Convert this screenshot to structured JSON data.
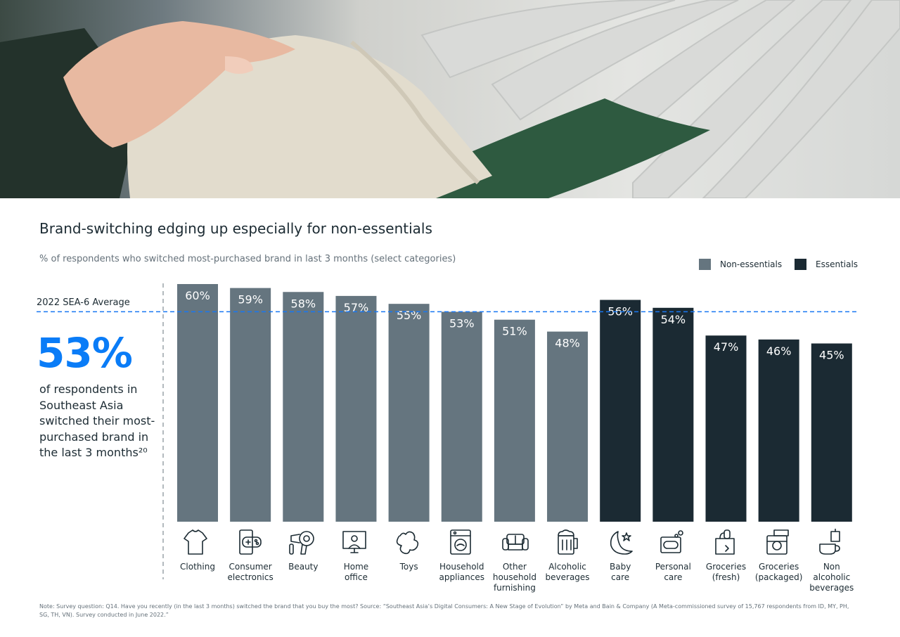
{
  "hero": {
    "image": "hand-holding-white-shirt-on-clothes-rack-photo"
  },
  "title": "Brand-switching edging up especially for non-essentials",
  "subtitle": "% of respondents who switched most-purchased brand in last 3 months (select categories)",
  "legend": {
    "non_essentials": "Non-essentials",
    "essentials": "Essentials"
  },
  "average": {
    "label": "2022 SEA-6 Average",
    "value": 53
  },
  "stat": {
    "value": "53%",
    "description": "of respondents in Southeast Asia switched their most-purchased brand in the last 3 months²⁰"
  },
  "colors": {
    "non_essentials": "#65757f",
    "essentials": "#1b2a33",
    "accent": "#0a7cf7",
    "average_line": "#1877f2"
  },
  "chart_data": {
    "type": "bar",
    "title": "Brand-switching edging up especially for non-essentials",
    "subtitle": "% of respondents who switched most-purchased brand in last 3 months (select categories)",
    "ylim": [
      0,
      60
    ],
    "reference_line": {
      "label": "2022 SEA-6 Average",
      "value": 53
    },
    "legend_position": "top-right",
    "categories": [
      "Clothing",
      "Consumer electronics",
      "Beauty",
      "Home office",
      "Toys",
      "Household appliances",
      "Other household furnishing",
      "Alcoholic beverages",
      "Baby care",
      "Personal care",
      "Groceries (fresh)",
      "Groceries (packaged)",
      "Non alcoholic beverages"
    ],
    "bars": [
      {
        "label": [
          "Clothing"
        ],
        "value": 60,
        "value_label": "60%",
        "group": "Non-essentials",
        "icon": "tshirt-icon"
      },
      {
        "label": [
          "Consumer",
          "electronics"
        ],
        "value": 59,
        "value_label": "59%",
        "group": "Non-essentials",
        "icon": "game-controller-phone-icon"
      },
      {
        "label": [
          "Beauty"
        ],
        "value": 58,
        "value_label": "58%",
        "group": "Non-essentials",
        "icon": "hair-dryer-icon"
      },
      {
        "label": [
          "Home",
          "office"
        ],
        "value": 57,
        "value_label": "57%",
        "group": "Non-essentials",
        "icon": "monitor-person-icon"
      },
      {
        "label": [
          "Toys"
        ],
        "value": 55,
        "value_label": "55%",
        "group": "Non-essentials",
        "icon": "puzzle-piece-icon"
      },
      {
        "label": [
          "Household",
          "appliances"
        ],
        "value": 53,
        "value_label": "53%",
        "group": "Non-essentials",
        "icon": "washing-machine-icon"
      },
      {
        "label": [
          "Other",
          "household",
          "furnishing"
        ],
        "value": 51,
        "value_label": "51%",
        "group": "Non-essentials",
        "icon": "sofa-icon"
      },
      {
        "label": [
          "Alcoholic",
          "beverages"
        ],
        "value": 48,
        "value_label": "48%",
        "group": "Non-essentials",
        "icon": "beer-mug-icon"
      },
      {
        "label": [
          "Baby",
          "care"
        ],
        "value": 56,
        "value_label": "56%",
        "group": "Essentials",
        "icon": "moon-star-icon"
      },
      {
        "label": [
          "Personal",
          "care"
        ],
        "value": 54,
        "value_label": "54%",
        "group": "Essentials",
        "icon": "soap-bubbles-icon"
      },
      {
        "label": [
          "Groceries",
          "(fresh)"
        ],
        "value": 47,
        "value_label": "47%",
        "group": "Essentials",
        "icon": "grocery-bag-icon"
      },
      {
        "label": [
          "Groceries",
          "(packaged)"
        ],
        "value": 46,
        "value_label": "46%",
        "group": "Essentials",
        "icon": "packaged-jar-icon"
      },
      {
        "label": [
          "Non",
          "alcoholic",
          "beverages"
        ],
        "value": 45,
        "value_label": "45%",
        "group": "Essentials",
        "icon": "cup-drink-icon"
      }
    ]
  },
  "footnote": "Note: Survey question: Q14. Have you recently (in the last 3 months) switched the brand that you buy the most? Source: “Southeast Asia’s Digital Consumers: A New Stage of Evolution” by Meta and Bain & Company (A Meta-commissioned survey of 15,767 respondents from ID, MY, PH, SG, TH, VN). Survey conducted in June 2022.”"
}
